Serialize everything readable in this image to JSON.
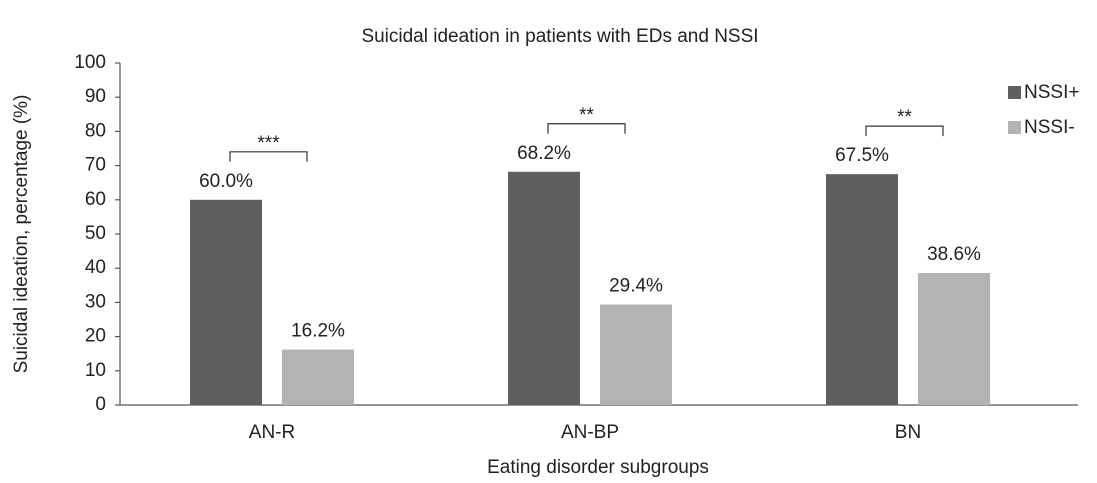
{
  "chart_data": {
    "type": "bar",
    "title": "Suicidal ideation in patients with EDs and NSSI",
    "x_label": "Eating disorder subgroups",
    "y_label": "Suicidal ideation, percentage (%)",
    "categories": [
      "AN-R",
      "AN-BP",
      "BN"
    ],
    "series": [
      {
        "name": "NSSI+",
        "color": "#5f5f5f",
        "values": [
          60.0,
          68.2,
          67.5
        ],
        "value_labels": [
          "60.0%",
          "68.2%",
          "67.5%"
        ]
      },
      {
        "name": "NSSI-",
        "color": "#b3b3b3",
        "values": [
          16.2,
          29.4,
          38.6
        ],
        "value_labels": [
          "16.2%",
          "29.4%",
          "38.6%"
        ]
      }
    ],
    "significance": [
      "***",
      "**",
      "**"
    ],
    "ylim": [
      0,
      100
    ],
    "yticks": [
      0,
      10,
      20,
      30,
      40,
      50,
      60,
      70,
      80,
      90,
      100
    ],
    "grid": false,
    "legend": "upper right"
  }
}
